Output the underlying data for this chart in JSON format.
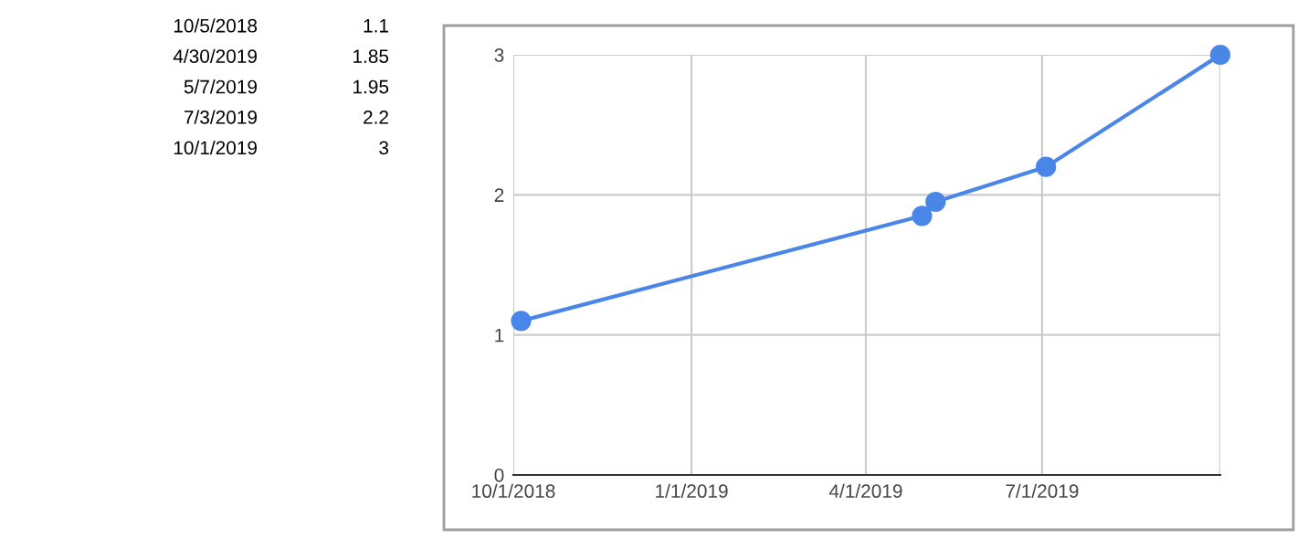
{
  "chart_data": {
    "type": "line",
    "x": [
      "2018-10-05",
      "2019-04-30",
      "2019-05-07",
      "2019-07-03",
      "2019-10-01"
    ],
    "series": [
      {
        "color": "#4a86e8",
        "values": [
          1.1,
          1.85,
          1.95,
          2.2,
          3
        ]
      }
    ],
    "xlim": [
      "2018-10-01",
      "2019-10-01"
    ],
    "xticks": [
      {
        "value": "2018-10-01",
        "label": "10/1/2018"
      },
      {
        "value": "2019-01-01",
        "label": "1/1/2019"
      },
      {
        "value": "2019-04-01",
        "label": "4/1/2019"
      },
      {
        "value": "2019-07-01",
        "label": "7/1/2019"
      },
      {
        "value": "2019-10-01",
        "label": null
      }
    ],
    "ylim": [
      0,
      3
    ],
    "yticks": [
      0,
      1,
      2,
      3
    ],
    "annotations": [
      "10/5/2018",
      "1.1",
      "4/30/2019",
      "1.85",
      "5/7/2019",
      "1.95",
      "7/3/2019",
      "2.2",
      "10/1/2019",
      "3"
    ],
    "grid": true,
    "marker": "circle",
    "line_style": "solid"
  }
}
